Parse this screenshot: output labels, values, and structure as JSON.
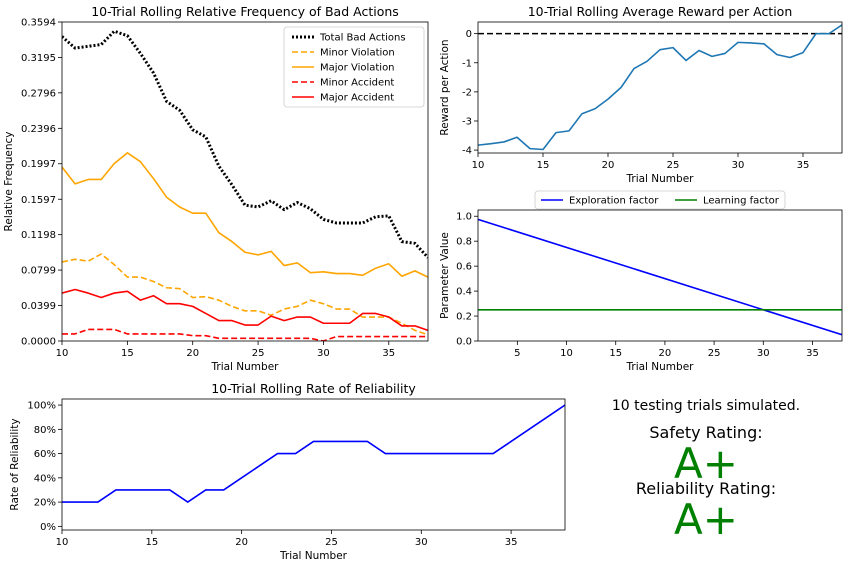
{
  "colors": {
    "blue": "#1f77b4",
    "orange": "#ffa500",
    "red": "#ff0000",
    "black": "#000000",
    "line_blue": "#0000ff",
    "green": "#008000"
  },
  "chart_data": [
    {
      "id": "bad_actions",
      "type": "line",
      "title": "10-Trial Rolling Relative Frequency of Bad Actions",
      "xlabel": "Trial Number",
      "ylabel": "Relative Frequency",
      "xlim": [
        10,
        38
      ],
      "ylim": [
        0,
        0.3594
      ],
      "xticks": [
        10,
        15,
        20,
        25,
        30,
        35
      ],
      "yticks": [
        "0.0000",
        "0.0399",
        "0.0799",
        "0.1198",
        "0.1597",
        "0.1997",
        "0.2396",
        "0.2796",
        "0.3195",
        "0.3594"
      ],
      "legend": "top-right",
      "x": [
        10,
        11,
        12,
        13,
        14,
        15,
        16,
        17,
        18,
        19,
        20,
        21,
        22,
        23,
        24,
        25,
        26,
        27,
        28,
        29,
        30,
        31,
        32,
        33,
        34,
        35,
        36,
        37,
        38
      ],
      "series": [
        {
          "name": "Total Bad Actions",
          "color": "#000000",
          "dash": "dotted",
          "values": [
            0.343,
            0.33,
            0.332,
            0.334,
            0.349,
            0.344,
            0.324,
            0.302,
            0.27,
            0.26,
            0.238,
            0.23,
            0.197,
            0.176,
            0.153,
            0.151,
            0.158,
            0.148,
            0.156,
            0.149,
            0.137,
            0.133,
            0.133,
            0.133,
            0.14,
            0.141,
            0.112,
            0.11,
            0.094
          ]
        },
        {
          "name": "Minor Violation",
          "color": "#ffa500",
          "dash": "dashed",
          "values": [
            0.089,
            0.092,
            0.09,
            0.098,
            0.086,
            0.072,
            0.072,
            0.067,
            0.06,
            0.059,
            0.049,
            0.05,
            0.046,
            0.039,
            0.034,
            0.034,
            0.029,
            0.036,
            0.039,
            0.046,
            0.042,
            0.036,
            0.036,
            0.027,
            0.027,
            0.027,
            0.02,
            0.012,
            0.007
          ]
        },
        {
          "name": "Major Violation",
          "color": "#ffa500",
          "dash": "solid",
          "values": [
            0.196,
            0.177,
            0.182,
            0.182,
            0.2,
            0.212,
            0.202,
            0.183,
            0.162,
            0.151,
            0.144,
            0.144,
            0.122,
            0.112,
            0.1,
            0.097,
            0.101,
            0.085,
            0.088,
            0.077,
            0.078,
            0.076,
            0.076,
            0.074,
            0.082,
            0.087,
            0.073,
            0.079,
            0.072
          ]
        },
        {
          "name": "Minor Accident",
          "color": "#ff0000",
          "dash": "dashed",
          "values": [
            0.008,
            0.008,
            0.013,
            0.013,
            0.013,
            0.008,
            0.008,
            0.008,
            0.008,
            0.008,
            0.006,
            0.006,
            0.003,
            0.003,
            0.003,
            0.003,
            0.003,
            0.003,
            0.003,
            0.003,
            0.0,
            0.005,
            0.005,
            0.005,
            0.005,
            0.005,
            0.005,
            0.005,
            0.005
          ]
        },
        {
          "name": "Major Accident",
          "color": "#ff0000",
          "dash": "solid",
          "values": [
            0.054,
            0.058,
            0.054,
            0.049,
            0.054,
            0.056,
            0.046,
            0.051,
            0.042,
            0.042,
            0.039,
            0.031,
            0.023,
            0.023,
            0.018,
            0.018,
            0.028,
            0.023,
            0.027,
            0.027,
            0.02,
            0.02,
            0.02,
            0.031,
            0.031,
            0.027,
            0.017,
            0.017,
            0.012
          ]
        }
      ]
    },
    {
      "id": "reward",
      "type": "line",
      "title": "10-Trial Rolling Average Reward per Action",
      "xlabel": "Trial Number",
      "ylabel": "Reward per Action",
      "xlim": [
        10,
        38
      ],
      "ylim": [
        -4.1,
        0.4
      ],
      "xticks": [
        10,
        15,
        20,
        25,
        30,
        35
      ],
      "yticks": [
        -4,
        -3,
        -2,
        -1,
        0
      ],
      "reference_line": 0,
      "x": [
        10,
        11,
        12,
        13,
        14,
        15,
        16,
        17,
        18,
        19,
        20,
        21,
        22,
        23,
        24,
        25,
        26,
        27,
        28,
        29,
        30,
        31,
        32,
        33,
        34,
        35,
        36,
        37,
        38
      ],
      "series": [
        {
          "color": "#1f77b4",
          "values": [
            -3.83,
            -3.78,
            -3.72,
            -3.56,
            -3.95,
            -3.98,
            -3.4,
            -3.34,
            -2.75,
            -2.58,
            -2.25,
            -1.85,
            -1.2,
            -0.95,
            -0.55,
            -0.48,
            -0.92,
            -0.58,
            -0.78,
            -0.68,
            -0.3,
            -0.32,
            -0.35,
            -0.72,
            -0.82,
            -0.65,
            0.0,
            0.0,
            0.3
          ]
        }
      ]
    },
    {
      "id": "parameters",
      "type": "line",
      "xlabel": "Trial Number",
      "ylabel": "Parameter Value",
      "xlim": [
        1,
        38
      ],
      "ylim": [
        0,
        1.05
      ],
      "xticks": [
        5,
        10,
        15,
        20,
        25,
        30,
        35
      ],
      "yticks": [
        "0.0",
        "0.2",
        "0.4",
        "0.6",
        "0.8",
        "1.0"
      ],
      "legend": "top-center",
      "series": [
        {
          "name": "Exploration factor",
          "color": "#0000ff",
          "x": [
            1,
            38
          ],
          "values": [
            0.975,
            0.05
          ]
        },
        {
          "name": "Learning factor",
          "color": "#008000",
          "x": [
            1,
            38
          ],
          "values": [
            0.25,
            0.25
          ]
        }
      ]
    },
    {
      "id": "reliability",
      "type": "line",
      "title": "10-Trial Rolling Rate of Reliability",
      "xlabel": "Trial Number",
      "ylabel": "Rate of Reliability",
      "xlim": [
        10,
        38
      ],
      "ylim": [
        -3,
        105
      ],
      "xticks": [
        10,
        15,
        20,
        25,
        30,
        35
      ],
      "yticks": [
        "0%",
        "20%",
        "40%",
        "60%",
        "80%",
        "100%"
      ],
      "x": [
        10,
        11,
        12,
        13,
        14,
        15,
        16,
        17,
        18,
        19,
        20,
        21,
        22,
        23,
        24,
        25,
        26,
        27,
        28,
        29,
        30,
        31,
        32,
        33,
        34,
        35,
        36,
        37,
        38
      ],
      "series": [
        {
          "color": "#0000ff",
          "values": [
            20,
            20,
            20,
            30,
            30,
            30,
            30,
            20,
            30,
            30,
            40,
            50,
            60,
            60,
            70,
            70,
            70,
            70,
            60,
            60,
            60,
            60,
            60,
            60,
            60,
            70,
            80,
            90,
            100
          ]
        }
      ]
    }
  ],
  "summary": {
    "trials_text": "10 testing trials simulated.",
    "safety_label": "Safety Rating:",
    "safety_grade": "A+",
    "reliability_label": "Reliability Rating:",
    "reliability_grade": "A+"
  }
}
